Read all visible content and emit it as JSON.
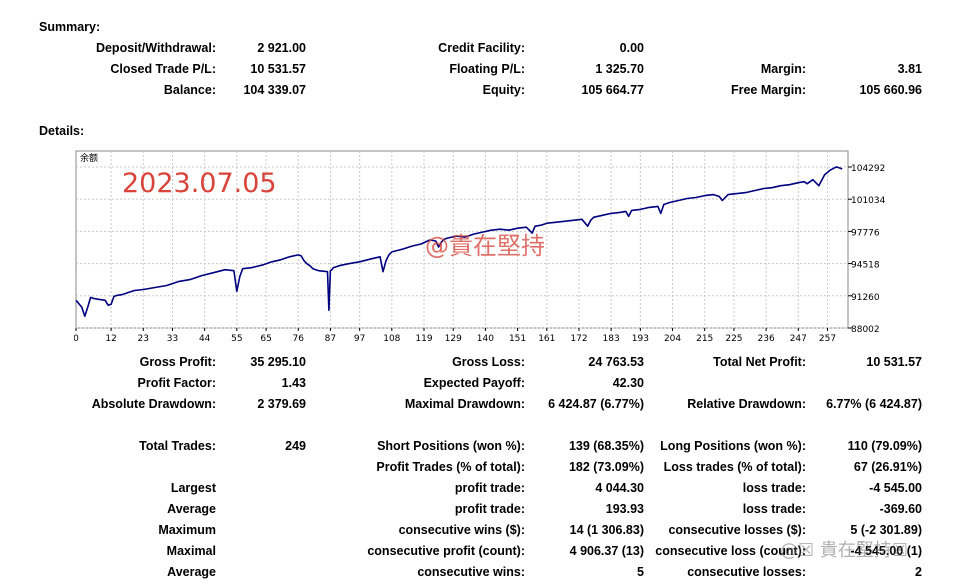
{
  "summary": {
    "title": "Summary:",
    "rows": [
      [
        {
          "label": "Deposit/Withdrawal:",
          "value": "2 921.00"
        },
        {
          "label": "Credit Facility:",
          "value": "0.00"
        },
        {
          "label": "",
          "value": ""
        }
      ],
      [
        {
          "label": "Closed Trade P/L:",
          "value": "10 531.57"
        },
        {
          "label": "Floating P/L:",
          "value": "1 325.70"
        },
        {
          "label": "Margin:",
          "value": "3.81"
        }
      ],
      [
        {
          "label": "Balance:",
          "value": "104 339.07"
        },
        {
          "label": "Equity:",
          "value": "105 664.77"
        },
        {
          "label": "Free Margin:",
          "value": "105 660.96"
        }
      ]
    ]
  },
  "details": {
    "title": "Details:"
  },
  "chart_data": {
    "type": "line",
    "title": "余额",
    "ylim": [
      88002,
      105908
    ],
    "xlim": [
      0,
      264
    ],
    "y_ticks": [
      "104292",
      "101034",
      "97776",
      "94518",
      "91260",
      "88002"
    ],
    "x_ticks": [
      "0",
      "12",
      "23",
      "33",
      "44",
      "55",
      "65",
      "76",
      "87",
      "97",
      "108",
      "119",
      "129",
      "140",
      "151",
      "161",
      "172",
      "183",
      "193",
      "204",
      "215",
      "225",
      "236",
      "247",
      "257"
    ],
    "grid": true,
    "series": [
      {
        "color": "#000080",
        "x": [
          0,
          2,
          3,
          4,
          5,
          6,
          8,
          10,
          11,
          12,
          13,
          14,
          16,
          18,
          20,
          23,
          27,
          31,
          35,
          39,
          43,
          47,
          51,
          54,
          55,
          56,
          57,
          60,
          64,
          67,
          70,
          73,
          76,
          77,
          78,
          79,
          80,
          81,
          83,
          86,
          86.5,
          87,
          87.5,
          88,
          90,
          93,
          97,
          101,
          104,
          105,
          106,
          107,
          108,
          112,
          115,
          118,
          121,
          123,
          124,
          125,
          126,
          127,
          130,
          133,
          136,
          139,
          142,
          145,
          148,
          151,
          154,
          156,
          157,
          159,
          161,
          164,
          167,
          170,
          173,
          175,
          176,
          177,
          180,
          183,
          186,
          188,
          189,
          190,
          193,
          196,
          199,
          200,
          201,
          203,
          206,
          209,
          212,
          215,
          218,
          220,
          221,
          223,
          226,
          229,
          232,
          235,
          238,
          241,
          244,
          247,
          249,
          250,
          252,
          254,
          256,
          258,
          260,
          262
        ],
        "y": [
          90800,
          90100,
          89200,
          90100,
          91100,
          91000,
          90900,
          90800,
          90300,
          90400,
          91200,
          91300,
          91400,
          91600,
          91800,
          91900,
          92100,
          92300,
          92700,
          92900,
          93300,
          93600,
          93900,
          93800,
          91700,
          93200,
          94000,
          94100,
          94400,
          94700,
          94900,
          95200,
          95400,
          95300,
          94800,
          94500,
          94300,
          94000,
          93800,
          93700,
          89800,
          93800,
          93900,
          94100,
          94300,
          94500,
          94700,
          95000,
          95200,
          93700,
          94800,
          95400,
          95700,
          96000,
          96300,
          96500,
          96900,
          96800,
          96200,
          96700,
          97000,
          97100,
          97300,
          97200,
          97500,
          97700,
          97900,
          98000,
          97900,
          98100,
          98200,
          97600,
          98300,
          98400,
          98600,
          98700,
          98800,
          98900,
          99000,
          98300,
          98900,
          99200,
          99400,
          99600,
          99700,
          99800,
          99300,
          99900,
          100000,
          100200,
          100300,
          99600,
          100500,
          100700,
          100900,
          101100,
          101200,
          101400,
          101500,
          101300,
          100900,
          101500,
          101600,
          101700,
          101900,
          102100,
          102200,
          102400,
          102500,
          102700,
          102800,
          102600,
          103000,
          102400,
          103500,
          104000,
          104300,
          104100
        ]
      }
    ]
  },
  "stats": [
    [
      {
        "label": "Gross Profit:",
        "value": "35 295.10"
      },
      {
        "label": "Gross Loss:",
        "value": "24 763.53"
      },
      {
        "label": "Total Net Profit:",
        "value": "10 531.57"
      }
    ],
    [
      {
        "label": "Profit Factor:",
        "value": "1.43"
      },
      {
        "label": "Expected Payoff:",
        "value": "42.30"
      },
      {
        "label": "",
        "value": ""
      }
    ],
    [
      {
        "label": "Absolute Drawdown:",
        "value": "2 379.69"
      },
      {
        "label": "Maximal Drawdown:",
        "value": "6 424.87 (6.77%)"
      },
      {
        "label": "Relative Drawdown:",
        "value": "6.77% (6 424.87)"
      }
    ],
    [
      {
        "label": "Total Trades:",
        "value": "249"
      },
      {
        "label": "Short Positions (won %):",
        "value": "139 (68.35%)"
      },
      {
        "label": "Long Positions (won %):",
        "value": "110 (79.09%)"
      }
    ],
    [
      {
        "label": "",
        "value": ""
      },
      {
        "label": "Profit Trades (% of total):",
        "value": "182 (73.09%)"
      },
      {
        "label": "Loss trades (% of total):",
        "value": "67 (26.91%)"
      }
    ],
    [
      {
        "label": "Largest",
        "value": ""
      },
      {
        "label": "profit trade:",
        "value": "4 044.30"
      },
      {
        "label": "loss trade:",
        "value": "-4 545.00"
      }
    ],
    [
      {
        "label": "Average",
        "value": ""
      },
      {
        "label": "profit trade:",
        "value": "193.93"
      },
      {
        "label": "loss trade:",
        "value": "-369.60"
      }
    ],
    [
      {
        "label": "Maximum",
        "value": ""
      },
      {
        "label": "consecutive wins ($):",
        "value": "14 (1 306.83)"
      },
      {
        "label": "consecutive losses ($):",
        "value": "5 (-2 301.89)"
      }
    ],
    [
      {
        "label": "Maximal",
        "value": ""
      },
      {
        "label": "consecutive profit (count):",
        "value": "4 906.37 (13)"
      },
      {
        "label": "consecutive loss (count):",
        "value": "-4 545.00 (1)"
      }
    ],
    [
      {
        "label": "Average",
        "value": ""
      },
      {
        "label": "consecutive wins:",
        "value": "5"
      },
      {
        "label": "consecutive losses:",
        "value": "2"
      }
    ]
  ],
  "watermarks": {
    "date": "2023.07.05",
    "handle": "@貴在堅持",
    "corner": "@☒ 貴在堅持☒"
  }
}
